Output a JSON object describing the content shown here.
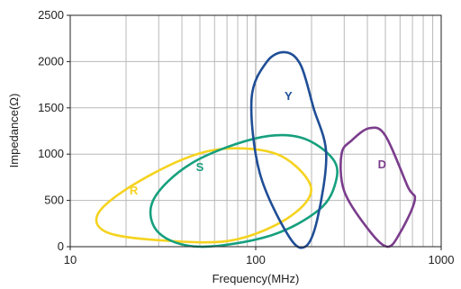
{
  "chart_data": {
    "type": "scatter",
    "xlabel": "Frequency(MHz)",
    "ylabel": "Impedance(Ω)",
    "x_scale": "log",
    "xlim": [
      10,
      1000
    ],
    "ylim": [
      0,
      2500
    ],
    "x_ticks": [
      10,
      100,
      1000
    ],
    "x_tick_labels": [
      "10",
      "100",
      "1000"
    ],
    "y_ticks": [
      0,
      500,
      1000,
      1500,
      2000,
      2500
    ],
    "y_tick_labels": [
      "0",
      "500",
      "1000",
      "1500",
      "2000",
      "2500"
    ],
    "grid": true,
    "regions": [
      {
        "label": "R",
        "color": "#f5d31f",
        "label_at": [
          22,
          600
        ],
        "outline": [
          [
            14,
            340
          ],
          [
            20,
            620
          ],
          [
            40,
            940
          ],
          [
            70,
            1060
          ],
          [
            130,
            1000
          ],
          [
            190,
            730
          ],
          [
            190,
            500
          ],
          [
            130,
            240
          ],
          [
            70,
            60
          ],
          [
            30,
            70
          ],
          [
            16,
            150
          ]
        ]
      },
      {
        "label": "S",
        "color": "#16a07e",
        "label_at": [
          50,
          850
        ],
        "outline": [
          [
            28,
            500
          ],
          [
            45,
            900
          ],
          [
            100,
            1170
          ],
          [
            175,
            1180
          ],
          [
            260,
            950
          ],
          [
            270,
            700
          ],
          [
            220,
            400
          ],
          [
            120,
            120
          ],
          [
            50,
            0
          ],
          [
            30,
            150
          ]
        ]
      },
      {
        "label": "Y",
        "color": "#1f4e96",
        "label_at": [
          150,
          1620
        ],
        "outline": [
          [
            95,
            1600
          ],
          [
            115,
            2000
          ],
          [
            145,
            2100
          ],
          [
            175,
            1960
          ],
          [
            205,
            1500
          ],
          [
            240,
            1000
          ],
          [
            215,
            300
          ],
          [
            185,
            0
          ],
          [
            150,
            120
          ],
          [
            105,
            800
          ]
        ]
      },
      {
        "label": "D",
        "color": "#7b3d8c",
        "label_at": [
          480,
          880
        ],
        "outline": [
          [
            290,
            1000
          ],
          [
            330,
            1150
          ],
          [
            410,
            1280
          ],
          [
            500,
            1200
          ],
          [
            660,
            650
          ],
          [
            720,
            500
          ],
          [
            600,
            150
          ],
          [
            510,
            0
          ],
          [
            400,
            200
          ],
          [
            300,
            600
          ]
        ]
      }
    ]
  }
}
